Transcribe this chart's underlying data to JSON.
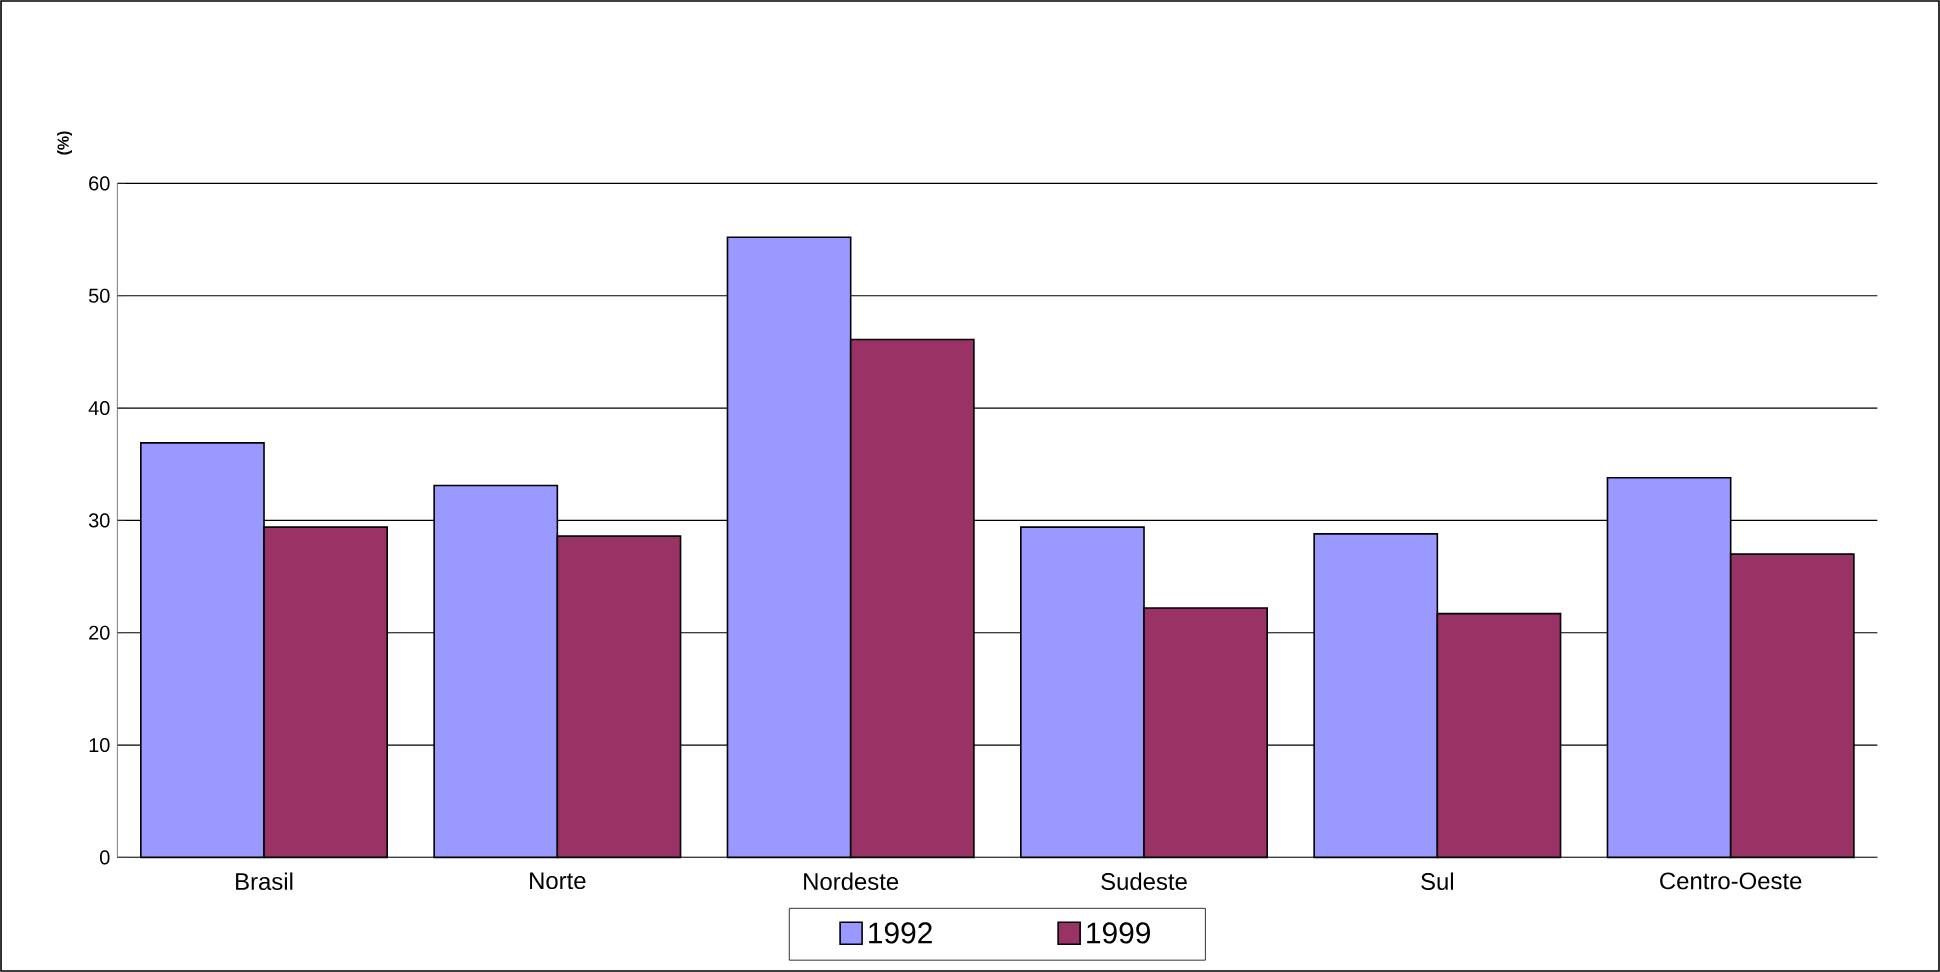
{
  "chart_data": {
    "type": "bar",
    "ylabel": "(%)",
    "categories": [
      "Brasil",
      "Norte",
      "Nordeste",
      "Sudeste",
      "Sul",
      "Centro-Oeste"
    ],
    "series": [
      {
        "name": "1992",
        "color": "#9999ff",
        "values": [
          36.9,
          33.1,
          55.2,
          29.4,
          28.8,
          33.8
        ]
      },
      {
        "name": "1999",
        "color": "#993366",
        "values": [
          29.4,
          28.6,
          46.1,
          22.2,
          21.7,
          27.0
        ]
      }
    ],
    "ylim": [
      0,
      60
    ],
    "yticks": [
      0,
      10,
      20,
      30,
      40,
      50,
      60
    ],
    "grid": "y",
    "legend": "bottom"
  }
}
